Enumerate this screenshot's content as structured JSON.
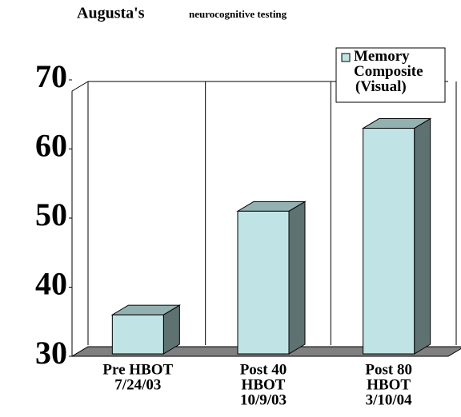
{
  "chart_data": {
    "type": "bar3d",
    "title": "Augusta's",
    "subtitle": "neurocognitive testing",
    "categories": [
      [
        "Pre HBOT",
        "7/24/03"
      ],
      [
        "Post 40",
        "HBOT",
        "10/9/03"
      ],
      [
        "Post 80",
        "HBOT",
        "3/10/04"
      ]
    ],
    "series": [
      {
        "name": "Memory Composite (Visual)",
        "color": "#c0e4e6",
        "values": [
          36,
          51,
          63
        ]
      }
    ],
    "ylim": [
      30,
      70
    ],
    "yticks": [
      30,
      40,
      50,
      60,
      70
    ],
    "grid": false,
    "legend": "upper right"
  }
}
